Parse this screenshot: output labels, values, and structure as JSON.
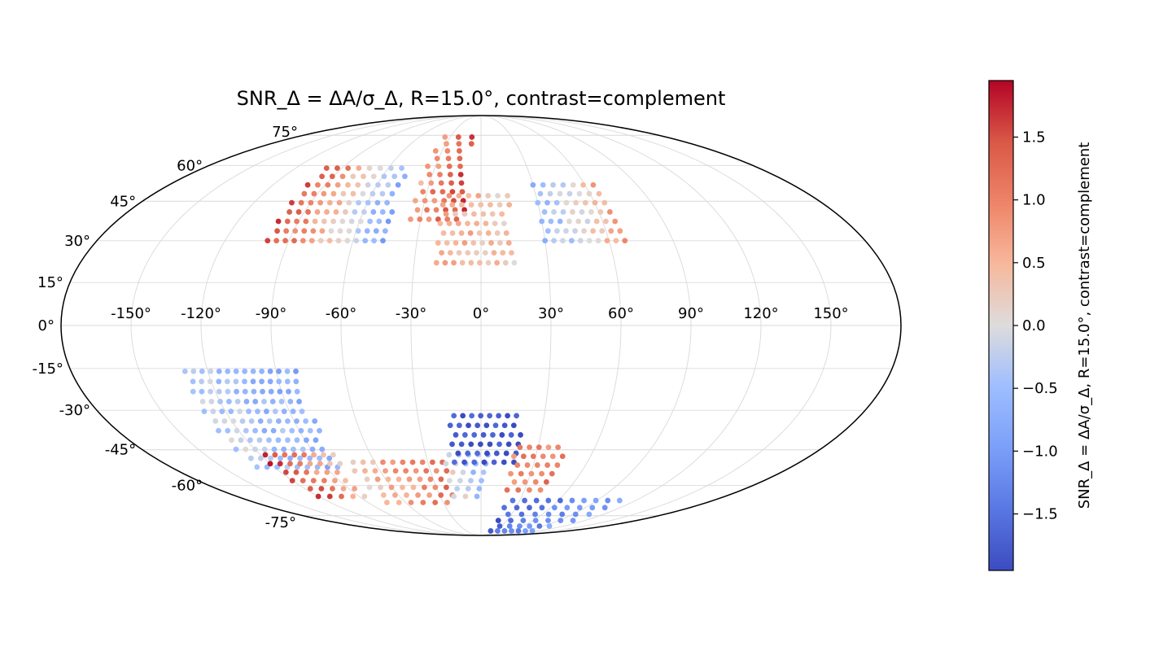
{
  "chart_data": {
    "type": "scatter",
    "projection": "mollweide",
    "title": "SNR_Δ = ΔA/σ_Δ, R=15.0°, contrast=complement",
    "colorbar_label": "SNR_Δ = ΔA/σ_Δ, R=15.0°, contrast=complement",
    "colormap": "coolwarm",
    "color_range": [
      -1.95,
      1.95
    ],
    "colorbar_ticks": [
      "−1.5",
      "−1.0",
      "−0.5",
      "0.0",
      "0.5",
      "1.0",
      "1.5"
    ],
    "colorbar_tick_values": [
      -1.5,
      -1.0,
      -0.5,
      0.0,
      0.5,
      1.0,
      1.5
    ],
    "lon_ticks": [
      "-150°",
      "-120°",
      "-90°",
      "-60°",
      "-30°",
      "0°",
      "30°",
      "60°",
      "90°",
      "120°",
      "150°"
    ],
    "lon_tick_values": [
      -150,
      -120,
      -90,
      -60,
      -30,
      0,
      30,
      60,
      90,
      120,
      150
    ],
    "lat_ticks": [
      "-75°",
      "-60°",
      "-45°",
      "-30°",
      "-15°",
      "0°",
      "15°",
      "30°",
      "45°",
      "60°",
      "75°"
    ],
    "lat_tick_values": [
      -75,
      -60,
      -45,
      -30,
      -15,
      0,
      15,
      30,
      45,
      60,
      75
    ],
    "grid": true,
    "colorbar_position": "right",
    "point_groups": [
      {
        "lon_range": [
          -100,
          -45
        ],
        "lat_range": [
          30,
          62
        ],
        "value_west": 1.5,
        "value_east": -0.9
      },
      {
        "lon_range": [
          -35,
          -8
        ],
        "lat_range": [
          38,
          76
        ],
        "value_west": 0.7,
        "value_east": 1.6
      },
      {
        "lon_range": [
          -20,
          15
        ],
        "lat_range": [
          22,
          48
        ],
        "value_west": 0.6,
        "value_east": 0.3
      },
      {
        "lon_range": [
          30,
          68
        ],
        "lat_range": [
          30,
          52
        ],
        "value_west": -0.7,
        "value_east": 0.7
      },
      {
        "lon_range": [
          -130,
          -80
        ],
        "lat_range": [
          -52,
          -15
        ],
        "value_west": -0.2,
        "value_east": -0.8
      },
      {
        "lon_range": [
          -120,
          -80
        ],
        "lat_range": [
          -65,
          -45
        ],
        "value_west": 1.7,
        "value_east": 0.2
      },
      {
        "lon_range": [
          -75,
          -20
        ],
        "lat_range": [
          -68,
          -50
        ],
        "value_west": 0.3,
        "value_east": 1.2
      },
      {
        "lon_range": [
          -20,
          5
        ],
        "lat_range": [
          -65,
          -45
        ],
        "value_west": 0.2,
        "value_east": -0.7
      },
      {
        "lon_range": [
          -15,
          20
        ],
        "lat_range": [
          -50,
          -30
        ],
        "value_west": -1.8,
        "value_east": -1.9
      },
      {
        "lon_range": [
          18,
          45
        ],
        "lat_range": [
          -62,
          -42
        ],
        "value_west": 0.9,
        "value_east": 1.1
      },
      {
        "lon_range": [
          20,
          110
        ],
        "lat_range": [
          -85,
          -65
        ],
        "value_west": -1.8,
        "value_east": -0.9
      }
    ]
  }
}
